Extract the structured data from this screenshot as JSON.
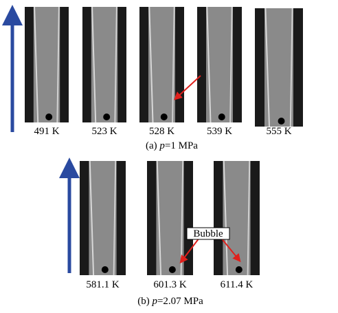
{
  "panel_a": {
    "images": [
      {
        "label": "491 K"
      },
      {
        "label": "523 K"
      },
      {
        "label": "528 K"
      },
      {
        "label": "539 K"
      },
      {
        "label": "555 K"
      }
    ],
    "caption": {
      "prefix": "(a) ",
      "variable": "p",
      "suffix": "=1 MPa"
    }
  },
  "panel_b": {
    "images": [
      {
        "label": "581.1 K"
      },
      {
        "label": "601.3 K"
      },
      {
        "label": "611.4 K"
      }
    ],
    "caption": {
      "prefix": "(b) ",
      "variable": "p",
      "suffix": "=2.07 MPa"
    },
    "annotation": "Bubble"
  }
}
